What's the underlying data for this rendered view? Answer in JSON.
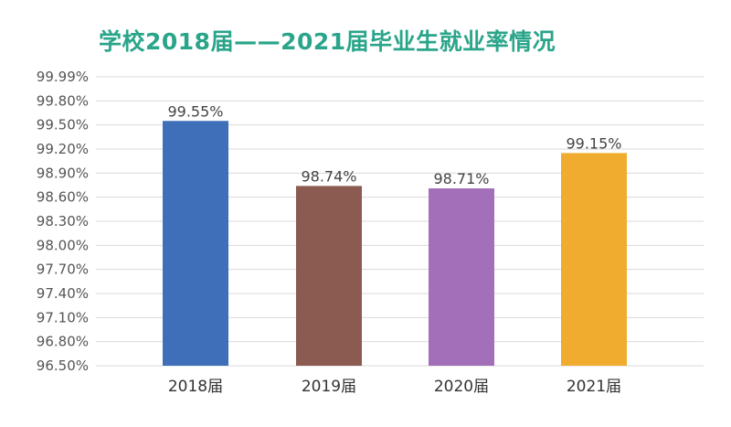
{
  "chart_data": {
    "type": "bar",
    "title": "学校2018届——2021届毕业生就业率情况",
    "categories": [
      "2018届",
      "2019届",
      "2020届",
      "2021届"
    ],
    "values": [
      99.55,
      98.74,
      98.71,
      99.15
    ],
    "data_labels": [
      "99.55%",
      "98.74%",
      "98.71%",
      "99.15%"
    ],
    "colors": [
      "#3f6fb8",
      "#8b5a50",
      "#a46fb9",
      "#f0ac2e"
    ],
    "y_ticks": [
      96.5,
      96.8,
      97.1,
      97.4,
      97.7,
      98.0,
      98.3,
      98.6,
      98.9,
      99.2,
      99.5,
      99.8,
      99.99
    ],
    "y_tick_labels": [
      "96.50%",
      "96.80%",
      "97.10%",
      "97.40%",
      "97.70%",
      "98.00%",
      "98.30%",
      "98.60%",
      "98.90%",
      "99.20%",
      "99.50%",
      "99.80%",
      "99.99%"
    ],
    "ylim": [
      96.5,
      99.99
    ],
    "grid": true,
    "legend": "none"
  }
}
